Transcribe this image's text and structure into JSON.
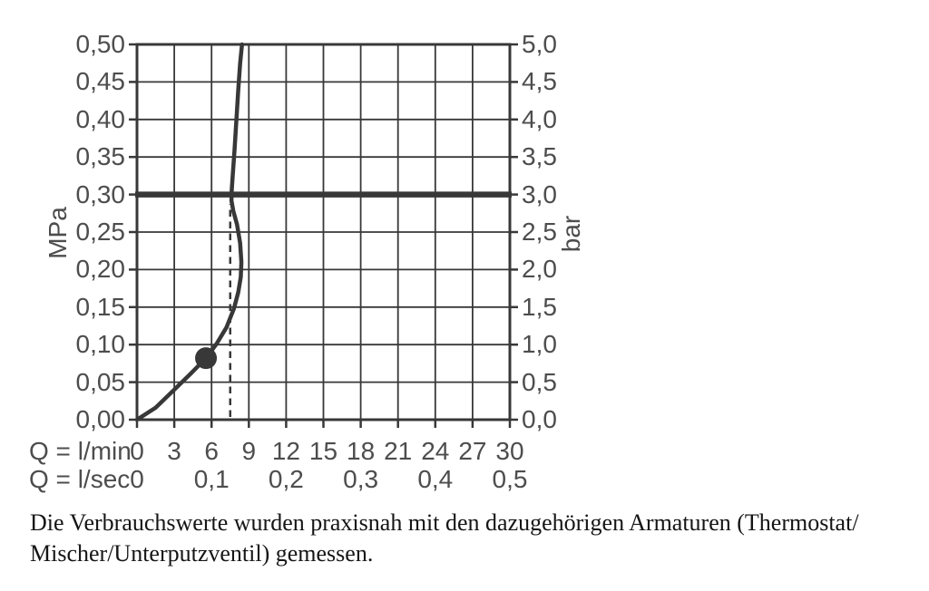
{
  "chart_data": {
    "type": "line",
    "title": "",
    "grid": true,
    "axes": {
      "left": {
        "unit": "MPa",
        "tick_labels": [
          "0,50",
          "0,45",
          "0,40",
          "0,35",
          "0,30",
          "0,25",
          "0,20",
          "0,15",
          "0,10",
          "0,05",
          "0,00"
        ],
        "tick_values": [
          0.5,
          0.45,
          0.4,
          0.35,
          0.3,
          0.25,
          0.2,
          0.15,
          0.1,
          0.05,
          0.0
        ],
        "range": [
          0,
          0.5
        ]
      },
      "right": {
        "unit": "bar",
        "tick_labels": [
          "5,0",
          "4,5",
          "4,0",
          "3,5",
          "3,0",
          "2,5",
          "2,0",
          "1,5",
          "1,0",
          "0,5",
          "0,0"
        ],
        "tick_values": [
          5.0,
          4.5,
          4.0,
          3.5,
          3.0,
          2.5,
          2.0,
          1.5,
          1.0,
          0.5,
          0.0
        ],
        "range": [
          0,
          5
        ]
      },
      "bottom_lmin": {
        "label": "Q = l/min",
        "tick_labels": [
          "0",
          "3",
          "6",
          "9",
          "12",
          "15",
          "18",
          "21",
          "24",
          "27",
          "30"
        ],
        "tick_values": [
          0,
          3,
          6,
          9,
          12,
          15,
          18,
          21,
          24,
          27,
          30
        ],
        "range": [
          0,
          30
        ]
      },
      "bottom_lsec": {
        "label": "Q = l/sec",
        "tick_labels": [
          "0",
          "0,1",
          "0,2",
          "0,3",
          "0,4",
          "0,5"
        ],
        "tick_values_lmin": [
          0,
          6,
          12,
          18,
          24,
          30
        ]
      }
    },
    "series": [
      {
        "name": "flow-pressure-curve",
        "points_lmin_mpa": [
          [
            0,
            0
          ],
          [
            1.5,
            0.016
          ],
          [
            3,
            0.04
          ],
          [
            4.3,
            0.061
          ],
          [
            5.55,
            0.082
          ],
          [
            6.4,
            0.101
          ],
          [
            7.2,
            0.123
          ],
          [
            7.8,
            0.148
          ],
          [
            8.15,
            0.17
          ],
          [
            8.35,
            0.19
          ],
          [
            8.4,
            0.21
          ],
          [
            8.3,
            0.235
          ],
          [
            8.05,
            0.26
          ],
          [
            7.75,
            0.278
          ],
          [
            7.6,
            0.292
          ],
          [
            7.62,
            0.305
          ],
          [
            7.7,
            0.325
          ],
          [
            7.85,
            0.36
          ],
          [
            8.0,
            0.4
          ],
          [
            8.15,
            0.44
          ],
          [
            8.3,
            0.475
          ],
          [
            8.45,
            0.5
          ]
        ]
      }
    ],
    "reference_line": {
      "mpa": 0.3,
      "bar": 3.0
    },
    "dashed_guide": {
      "lmin": 7.5,
      "from_mpa": 0,
      "to_mpa": 0.287
    },
    "operating_point": {
      "lmin": 5.55,
      "mpa": 0.082
    },
    "colors": {
      "ink": "#383838",
      "label": "#4d4d4d"
    }
  },
  "caption": {
    "line1": "Die Verbrauchswerte wurden praxisnah mit den dazugehörigen Armaturen (Thermostat/",
    "line2": "Mischer/Unterputzventil) gemessen."
  }
}
